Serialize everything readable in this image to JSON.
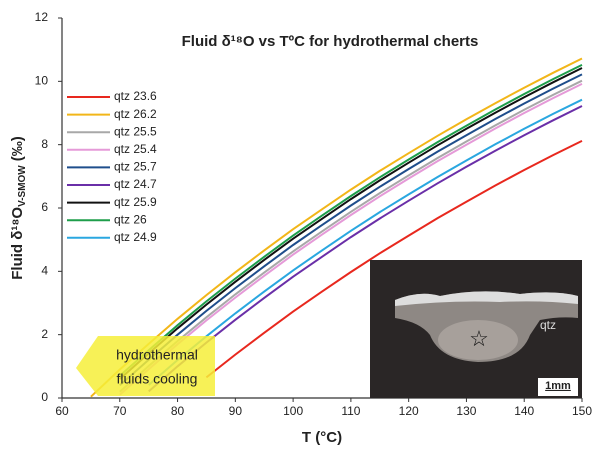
{
  "chart_data": {
    "type": "line",
    "title": "Fluid δ¹⁸O vs TºC for hydrothermal cherts",
    "xlabel": "T (°C)",
    "ylabel": "Fluid δ¹⁸O",
    "ylabel_sub": "V-SMOW",
    "ylabel_unit": "(‰)",
    "x": [
      60,
      65,
      70,
      75,
      80,
      85,
      90,
      95,
      100,
      105,
      110,
      115,
      120,
      125,
      130,
      135,
      140,
      145,
      150
    ],
    "xlim": [
      60,
      150
    ],
    "xticks": [
      60,
      70,
      80,
      90,
      100,
      110,
      120,
      130,
      140,
      150
    ],
    "ylim": [
      0,
      12
    ],
    "yticks": [
      0,
      2,
      4,
      6,
      8,
      10,
      12
    ],
    "legend": "upper-left",
    "series": [
      {
        "name": "qtz 23.6",
        "color": "#e8281e",
        "values": [
          null,
          null,
          null,
          null,
          null,
          0.65,
          1.37,
          2.06,
          2.73,
          3.36,
          3.98,
          4.57,
          5.13,
          5.68,
          6.2,
          6.71,
          7.2,
          7.67,
          8.12
        ]
      },
      {
        "name": "qtz 26.2",
        "color": "#f2b619",
        "values": [
          null,
          0.04,
          0.9,
          1.71,
          2.5,
          3.25,
          3.97,
          4.66,
          5.33,
          5.96,
          6.58,
          7.17,
          7.73,
          8.28,
          8.8,
          9.31,
          9.8,
          10.27,
          10.72
        ]
      },
      {
        "name": "qtz 25.5",
        "color": "#a8a8a8",
        "values": [
          null,
          null,
          0.2,
          1.01,
          1.8,
          2.55,
          3.27,
          3.96,
          4.63,
          5.26,
          5.88,
          6.47,
          7.03,
          7.58,
          8.1,
          8.61,
          9.1,
          9.57,
          10.02
        ]
      },
      {
        "name": "qtz 25.4",
        "color": "#e59ad8",
        "values": [
          null,
          null,
          0.1,
          0.91,
          1.7,
          2.45,
          3.17,
          3.86,
          4.53,
          5.16,
          5.78,
          6.37,
          6.93,
          7.48,
          8.0,
          8.51,
          9.0,
          9.47,
          9.92
        ]
      },
      {
        "name": "qtz 25.7",
        "color": "#1f4e8c",
        "values": [
          null,
          null,
          0.4,
          1.21,
          2.0,
          2.75,
          3.47,
          4.16,
          4.83,
          5.46,
          6.08,
          6.67,
          7.23,
          7.78,
          8.3,
          8.81,
          9.3,
          9.77,
          10.22
        ]
      },
      {
        "name": "qtz 24.7",
        "color": "#6a2fa8",
        "values": [
          null,
          null,
          null,
          0.21,
          1.0,
          1.75,
          2.47,
          3.16,
          3.83,
          4.46,
          5.08,
          5.67,
          6.23,
          6.78,
          7.3,
          7.81,
          8.3,
          8.77,
          9.22
        ]
      },
      {
        "name": "qtz 25.9",
        "color": "#111111",
        "values": [
          null,
          null,
          0.6,
          1.41,
          2.2,
          2.95,
          3.67,
          4.36,
          5.03,
          5.66,
          6.28,
          6.87,
          7.43,
          7.98,
          8.5,
          9.01,
          9.5,
          9.97,
          10.42
        ]
      },
      {
        "name": "qtz 26",
        "color": "#1e9e4a",
        "values": [
          null,
          null,
          0.7,
          1.51,
          2.3,
          3.05,
          3.77,
          4.46,
          5.13,
          5.76,
          6.38,
          6.97,
          7.53,
          8.08,
          8.6,
          9.11,
          9.6,
          10.07,
          10.52
        ]
      },
      {
        "name": "qtz 24.9",
        "color": "#2aa7e0",
        "values": [
          null,
          null,
          null,
          0.41,
          1.2,
          1.95,
          2.67,
          3.36,
          4.03,
          4.66,
          5.28,
          5.87,
          6.43,
          6.98,
          7.5,
          8.01,
          8.5,
          8.97,
          9.42
        ]
      }
    ],
    "annotations": {
      "arrow_text": [
        "hydrothermal",
        "fluids cooling"
      ],
      "inset_label": "qtz",
      "inset_scale": "1mm",
      "inset_marker": "☆"
    }
  }
}
